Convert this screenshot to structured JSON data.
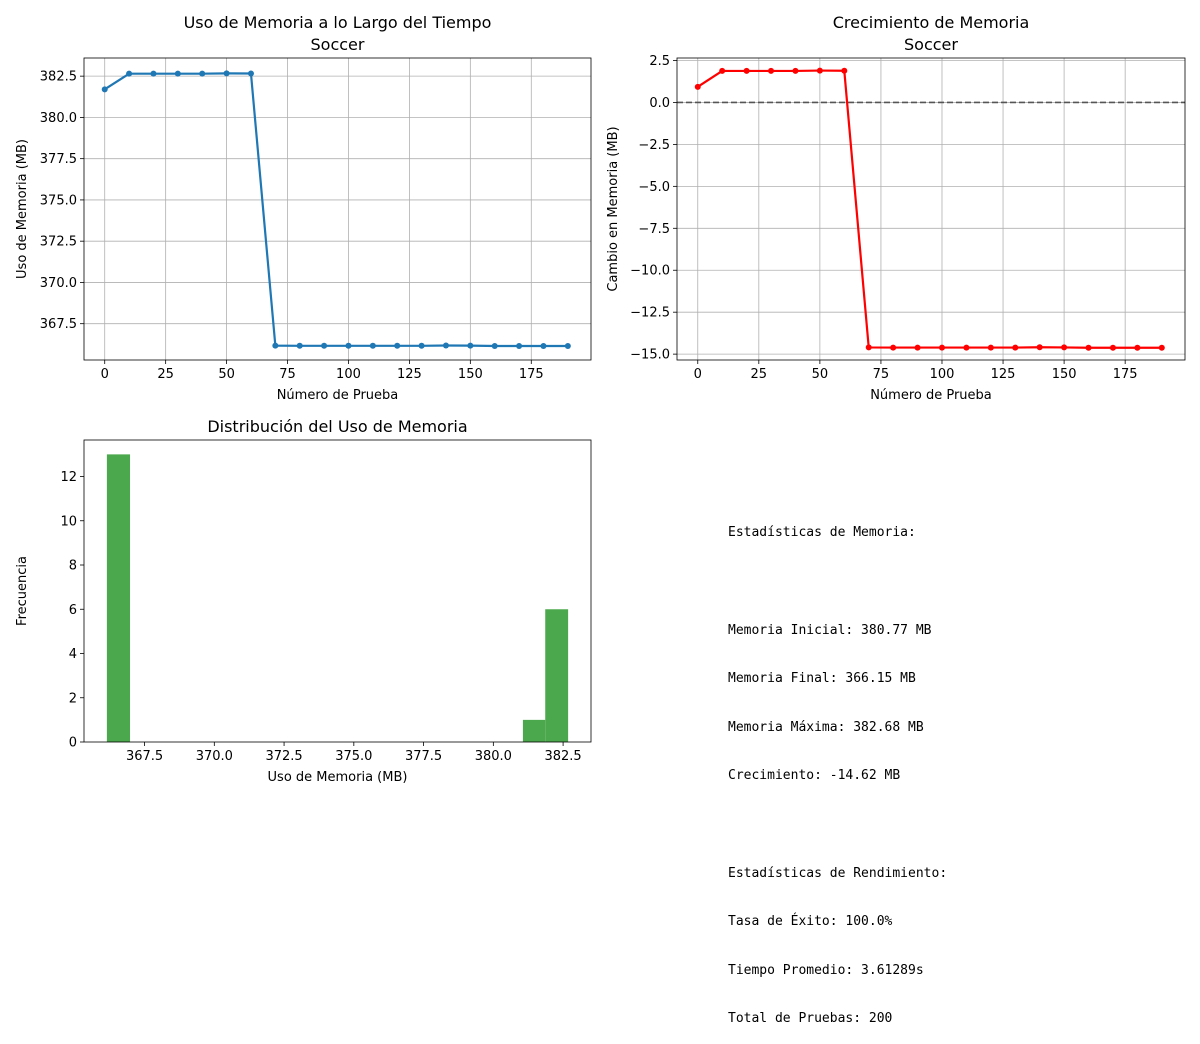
{
  "chart_data": [
    {
      "type": "line",
      "title": "Uso de Memoria a lo Largo del Tiempo\nSoccer",
      "xlabel": "Número de Prueba",
      "ylabel": "Uso de Memoria (MB)",
      "xlim": [
        -8.5,
        199.5
      ],
      "ylim": [
        365.3,
        383.6
      ],
      "xticks": [
        0,
        25,
        50,
        75,
        100,
        125,
        150,
        175
      ],
      "xtick_labels": [
        "0",
        "25",
        "50",
        "75",
        "100",
        "125",
        "150",
        "175"
      ],
      "yticks": [
        367.5,
        370.0,
        372.5,
        375.0,
        377.5,
        380.0,
        382.5
      ],
      "ytick_labels": [
        "367.5",
        "370.0",
        "372.5",
        "375.0",
        "377.5",
        "380.0",
        "382.5"
      ],
      "grid": true,
      "color": "#1f77b4",
      "x": [
        0,
        10,
        20,
        30,
        40,
        50,
        60,
        70,
        80,
        90,
        100,
        110,
        120,
        130,
        140,
        150,
        160,
        170,
        180,
        190
      ],
      "y": [
        381.7,
        382.65,
        382.65,
        382.65,
        382.65,
        382.67,
        382.66,
        366.17,
        366.16,
        366.16,
        366.16,
        366.16,
        366.16,
        366.16,
        366.18,
        366.17,
        366.15,
        366.15,
        366.15,
        366.15
      ]
    },
    {
      "type": "line",
      "title": "Crecimiento de Memoria\nSoccer",
      "xlabel": "Número de Prueba",
      "ylabel": "Cambio en Memoria (MB)",
      "xlim": [
        -8.5,
        199.5
      ],
      "ylim": [
        -15.35,
        2.65
      ],
      "xticks": [
        0,
        25,
        50,
        75,
        100,
        125,
        150,
        175
      ],
      "xtick_labels": [
        "0",
        "25",
        "50",
        "75",
        "100",
        "125",
        "150",
        "175"
      ],
      "yticks": [
        -15.0,
        -12.5,
        -10.0,
        -7.5,
        -5.0,
        -2.5,
        0.0,
        2.5
      ],
      "ytick_labels": [
        "−15.0",
        "−12.5",
        "−10.0",
        "−7.5",
        "−5.0",
        "−2.5",
        "0.0",
        "2.5"
      ],
      "grid": true,
      "color": "#ff0000",
      "reference_line": {
        "y": 0,
        "style": "dashed",
        "color": "#555555"
      },
      "x": [
        0,
        10,
        20,
        30,
        40,
        50,
        60,
        70,
        80,
        90,
        100,
        110,
        120,
        130,
        140,
        150,
        160,
        170,
        180,
        190
      ],
      "y": [
        0.93,
        1.88,
        1.88,
        1.88,
        1.88,
        1.9,
        1.89,
        -14.6,
        -14.61,
        -14.61,
        -14.61,
        -14.61,
        -14.61,
        -14.61,
        -14.59,
        -14.6,
        -14.62,
        -14.62,
        -14.62,
        -14.62
      ]
    },
    {
      "type": "bar",
      "title": "Distribución del Uso de Memoria",
      "xlabel": "Uso de Memoria (MB)",
      "ylabel": "Frecuencia",
      "xlim": [
        365.33,
        383.5
      ],
      "ylim": [
        0,
        13.65
      ],
      "xticks": [
        367.5,
        370.0,
        372.5,
        375.0,
        377.5,
        380.0,
        382.5
      ],
      "xtick_labels": [
        "367.5",
        "370.0",
        "372.5",
        "375.0",
        "377.5",
        "380.0",
        "382.5"
      ],
      "yticks": [
        0,
        2,
        4,
        6,
        8,
        10,
        12
      ],
      "ytick_labels": [
        "0",
        "2",
        "4",
        "6",
        "8",
        "10",
        "12"
      ],
      "grid": false,
      "color": "#4ca84c",
      "bins": [
        {
          "x0": 366.15,
          "x1": 366.98,
          "value": 13
        },
        {
          "x0": 381.06,
          "x1": 381.86,
          "value": 1
        },
        {
          "x0": 381.86,
          "x1": 382.68,
          "value": 6
        }
      ]
    }
  ],
  "stats": {
    "header_memory": "Estadísticas de Memoria:",
    "initial": "Memoria Inicial: 380.77 MB",
    "final": "Memoria Final: 366.15 MB",
    "max": "Memoria Máxima: 382.68 MB",
    "growth": "Crecimiento: -14.62 MB",
    "header_perf": "Estadísticas de Rendimiento:",
    "success": "Tasa de Éxito: 100.0%",
    "avg_time": "Tiempo Promedio: 3.61289s",
    "total": "Total de Pruebas: 200"
  }
}
